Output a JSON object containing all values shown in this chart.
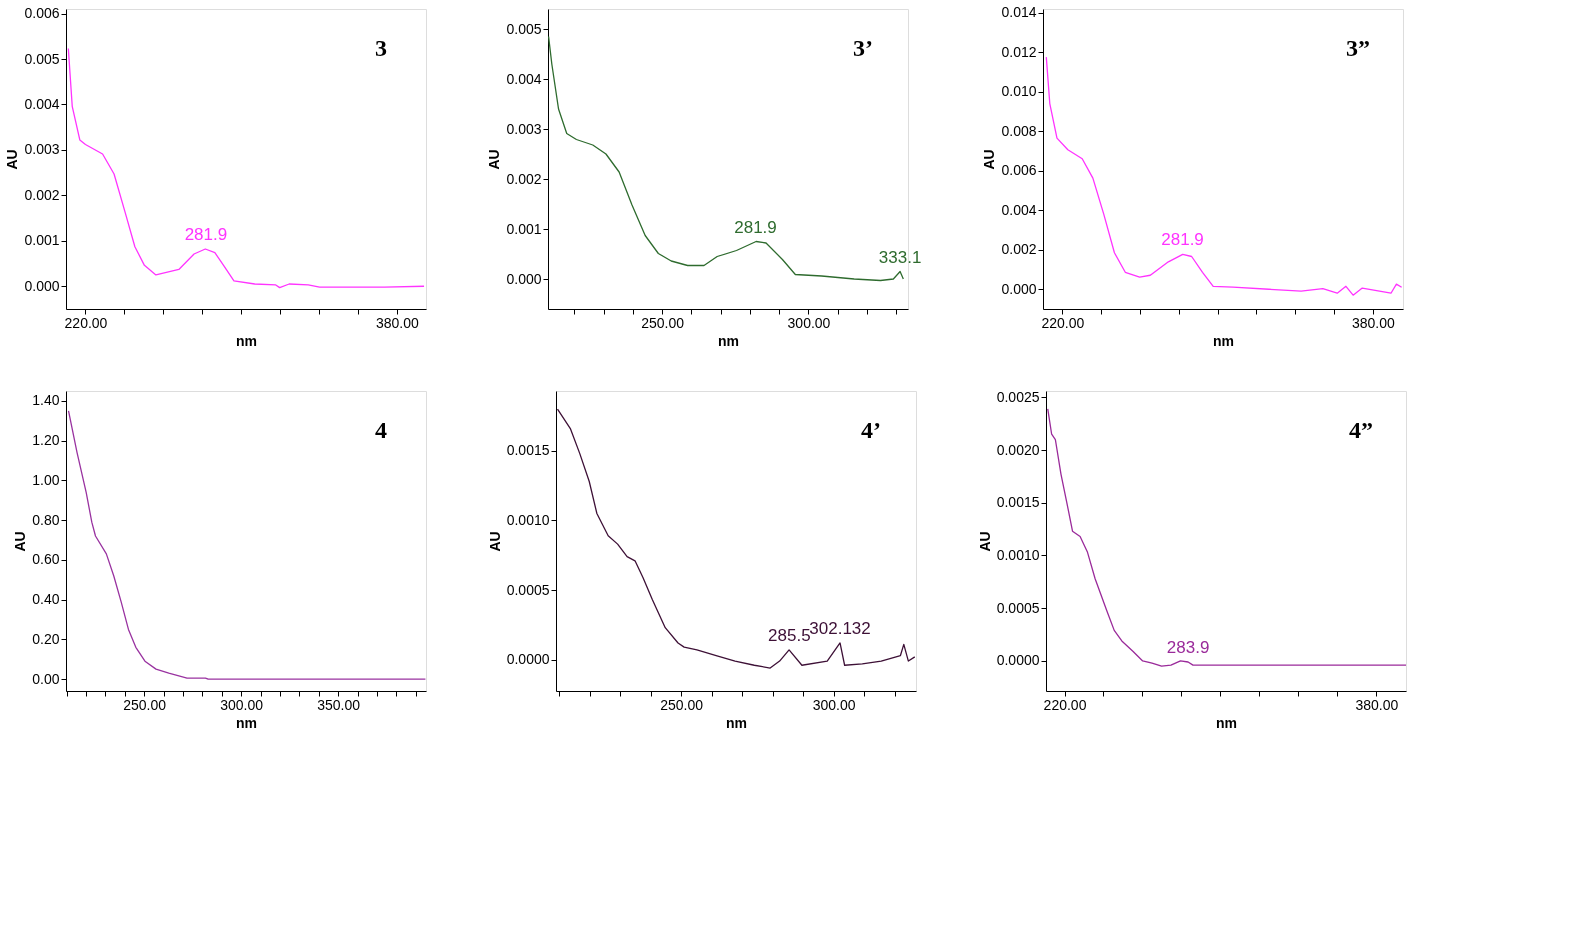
{
  "chart_data": [
    {
      "type": "line",
      "title": "3",
      "xlabel": "nm",
      "ylabel": "AU",
      "xlim": [
        210,
        395
      ],
      "ylim": [
        -0.0005,
        0.0061
      ],
      "xticks": [
        {
          "value": 220,
          "label": "220.00"
        },
        {
          "value": 240,
          "label": null
        },
        {
          "value": 260,
          "label": null
        },
        {
          "value": 280,
          "label": null
        },
        {
          "value": 300,
          "label": null
        },
        {
          "value": 320,
          "label": null
        },
        {
          "value": 340,
          "label": null
        },
        {
          "value": 360,
          "label": null
        },
        {
          "value": 380,
          "label": "380.00"
        }
      ],
      "yticks": [
        {
          "value": 0,
          "label": "0.000"
        },
        0.001,
        0.002,
        0.003,
        0.004,
        0.005,
        0.006
      ],
      "series": [
        {
          "color": "#ff33ff",
          "x": [
            211.2,
            213.2,
            217.1,
            220,
            228.8,
            234.7,
            240.5,
            245.4,
            250.3,
            256.2,
            268,
            275.8,
            281.6,
            286.5,
            291.4,
            296.3,
            307,
            317.8,
            319.8,
            324.7,
            334.5,
            340.3,
            360,
            373.6,
            394
          ],
          "values": [
            0.00523,
            0.00396,
            0.00322,
            0.00312,
            0.00291,
            0.00247,
            0.00161,
            0.00087,
            0.00046,
            0.00025,
            0.00037,
            0.00071,
            0.00082,
            0.00074,
            0.00043,
            0.00012,
            5e-05,
            3e-05,
            -3e-05,
            5e-05,
            3e-05,
            -2e-05,
            -2e-05,
            -2e-05,
            0.0
          ]
        }
      ],
      "annotations": [
        {
          "text": "281.9",
          "x": 281.9,
          "y": 0.00082
        }
      ]
    },
    {
      "type": "line",
      "title": "3’",
      "xlabel": "nm",
      "ylabel": "AU",
      "xlim": [
        211,
        334
      ],
      "ylim": [
        -0.0006,
        0.0054
      ],
      "xticks": [
        {
          "value": 220,
          "label": null
        },
        {
          "value": 230,
          "label": null
        },
        {
          "value": 240,
          "label": null
        },
        {
          "value": 250,
          "label": "250.00"
        },
        {
          "value": 260,
          "label": null
        },
        {
          "value": 270,
          "label": null
        },
        {
          "value": 280,
          "label": null
        },
        {
          "value": 290,
          "label": null
        },
        {
          "value": 300,
          "label": "300.00"
        },
        {
          "value": 310,
          "label": null
        },
        {
          "value": 320,
          "label": null
        },
        {
          "value": 330,
          "label": null
        }
      ],
      "yticks": [
        {
          "value": 0,
          "label": "0.000"
        },
        0.001,
        0.002,
        0.003,
        0.004,
        0.005
      ],
      "series": [
        {
          "color": "#2e6b2e",
          "x": [
            211.2,
            212.3,
            214.6,
            217.4,
            220.7,
            226.3,
            230.8,
            235.3,
            239.7,
            244.2,
            248.7,
            253.1,
            258.7,
            264.3,
            268.8,
            275.4,
            282.1,
            285.5,
            291.1,
            295.5,
            304.5,
            315.6,
            324.6,
            329,
            331.3,
            332.4
          ],
          "values": [
            0.00485,
            0.0043,
            0.0034,
            0.00291,
            0.00279,
            0.00268,
            0.0025,
            0.00214,
            0.00148,
            0.00087,
            0.00051,
            0.00036,
            0.00027,
            0.00027,
            0.00045,
            0.00057,
            0.00075,
            0.00072,
            0.00039,
            9e-05,
            6e-05,
            0.0,
            -3e-05,
            0.0,
            0.00015,
            0.0
          ]
        }
      ],
      "annotations": [
        {
          "text": "281.9",
          "x": 281.9,
          "y": 0.00075
        },
        {
          "text": "333.1",
          "x": 331.3,
          "y": 0.00015
        }
      ]
    },
    {
      "type": "line",
      "title": "3”",
      "xlabel": "nm",
      "ylabel": "AU",
      "xlim": [
        210,
        395.5
      ],
      "ylim": [
        -0.001,
        0.0142
      ],
      "xticks": [
        {
          "value": 220,
          "label": "220.00"
        },
        {
          "value": 240,
          "label": null
        },
        {
          "value": 260,
          "label": null
        },
        {
          "value": 280,
          "label": null
        },
        {
          "value": 300,
          "label": null
        },
        {
          "value": 320,
          "label": null
        },
        {
          "value": 340,
          "label": null
        },
        {
          "value": 360,
          "label": null
        },
        {
          "value": 380,
          "label": "380.00"
        }
      ],
      "yticks": [
        {
          "value": 0,
          "label": "0.000"
        },
        0.002,
        0.004,
        0.006,
        0.008,
        {
          "value": 0.01,
          "label": "0.010"
        },
        0.012,
        0.014
      ],
      "series": [
        {
          "color": "#ff33ff",
          "x": [
            211.7,
            213.5,
            217.2,
            222.8,
            230.2,
            235.7,
            241.3,
            246.8,
            252.4,
            259.8,
            265.3,
            274.6,
            282,
            286.6,
            292.2,
            297.7,
            307.9,
            326.4,
            343,
            354.2,
            361.6,
            366.1,
            369.8,
            374.5,
            389.3,
            392.1,
            394.8
          ],
          "values": [
            0.01176,
            0.00941,
            0.00766,
            0.00707,
            0.00661,
            0.00563,
            0.00381,
            0.00185,
            0.00086,
            0.00061,
            0.00071,
            0.00139,
            0.00177,
            0.00166,
            0.00086,
            0.00015,
            0.00011,
            0.0,
            -9e-05,
            3e-05,
            -0.0002,
            0.00015,
            -0.0003,
            6e-05,
            -0.0002,
            0.00026,
            0.0001
          ]
        }
      ],
      "annotations": [
        {
          "text": "281.9",
          "x": 281.9,
          "y": 0.00177
        }
      ]
    },
    {
      "type": "line",
      "title": "4",
      "xlabel": "nm",
      "ylabel": "AU",
      "xlim": [
        209.7,
        395.3
      ],
      "ylim": [
        -0.06,
        1.45
      ],
      "xticks": [
        {
          "value": 210,
          "label": null
        },
        {
          "value": 220,
          "label": null
        },
        {
          "value": 230,
          "label": null
        },
        {
          "value": 240,
          "label": null
        },
        {
          "value": 250,
          "label": "250.00"
        },
        {
          "value": 260,
          "label": null
        },
        {
          "value": 270,
          "label": null
        },
        {
          "value": 280,
          "label": null
        },
        {
          "value": 290,
          "label": null
        },
        {
          "value": 300,
          "label": "300.00"
        },
        {
          "value": 310,
          "label": null
        },
        {
          "value": 320,
          "label": null
        },
        {
          "value": 330,
          "label": null
        },
        {
          "value": 340,
          "label": null
        },
        {
          "value": 350,
          "label": "350.00"
        },
        {
          "value": 360,
          "label": null
        },
        {
          "value": 370,
          "label": null
        },
        {
          "value": 380,
          "label": null
        },
        {
          "value": 390,
          "label": null
        }
      ],
      "yticks": [
        {
          "value": 0,
          "label": "0.00"
        },
        {
          "value": 0.2,
          "label": "0.20"
        },
        {
          "value": 0.4,
          "label": "0.40"
        },
        {
          "value": 0.6,
          "label": "0.60"
        },
        {
          "value": 0.8,
          "label": "0.80"
        },
        {
          "value": 1.0,
          "label": "1.00"
        },
        {
          "value": 1.2,
          "label": "1.20"
        },
        {
          "value": 1.4,
          "label": "1.40"
        }
      ],
      "series": [
        {
          "color": "#9932a0",
          "x": [
            211,
            215.4,
            220.1,
            223,
            224.9,
            230.5,
            234.3,
            238.1,
            241.9,
            245.7,
            250.4,
            256.1,
            262.7,
            272.1,
            281.6,
            283,
            395
          ],
          "values": [
            1.35,
            1.14,
            0.94,
            0.79,
            0.72,
            0.63,
            0.52,
            0.39,
            0.25,
            0.16,
            0.09,
            0.05,
            0.03,
            0.005,
            0.005,
            0.0,
            0.0
          ]
        }
      ]
    },
    {
      "type": "line",
      "title": "4’",
      "xlabel": "nm",
      "ylabel": "AU",
      "xlim": [
        209,
        327
      ],
      "ylim": [
        -0.000225,
        0.00193
      ],
      "xticks": [
        {
          "value": 210,
          "label": null
        },
        {
          "value": 220,
          "label": null
        },
        {
          "value": 230,
          "label": null
        },
        {
          "value": 240,
          "label": null
        },
        {
          "value": 250,
          "label": "250.00"
        },
        {
          "value": 260,
          "label": null
        },
        {
          "value": 270,
          "label": null
        },
        {
          "value": 280,
          "label": null
        },
        {
          "value": 290,
          "label": null
        },
        {
          "value": 300,
          "label": "300.00"
        },
        {
          "value": 310,
          "label": null
        },
        {
          "value": 320,
          "label": null
        }
      ],
      "yticks": [
        {
          "value": 0,
          "label": "0.0000"
        },
        0.0005,
        {
          "value": 0.001,
          "label": "0.0010"
        },
        0.0015
      ],
      "series": [
        {
          "color": "#3d1036",
          "x": [
            209.5,
            213.7,
            216.8,
            219.9,
            222.4,
            226.1,
            229.2,
            232.3,
            234.9,
            237.5,
            240.6,
            244.8,
            249,
            251,
            255.2,
            261.5,
            267.7,
            274,
            279.2,
            282.3,
            285.4,
            289.6,
            297.9,
            302.1,
            303.6,
            309.4,
            315.6,
            321.9,
            323,
            324.5,
            326.6
          ],
          "values": [
            0.0018,
            0.00166,
            0.00148,
            0.00128,
            0.00105,
            0.00089,
            0.00083,
            0.00074,
            0.00071,
            0.00059,
            0.00043,
            0.00023,
            0.00012,
            9e-05,
            7e-05,
            3e-05,
            -1e-05,
            -4e-05,
            -6e-05,
            -1e-05,
            7e-05,
            -4e-05,
            -1e-05,
            0.00012,
            -4e-05,
            -3e-05,
            -1e-05,
            3e-05,
            0.00011,
            -1e-05,
            2e-05
          ]
        }
      ],
      "annotations": [
        {
          "text": "285.5",
          "x": 285.5,
          "y": 7e-05
        },
        {
          "text": "302.132",
          "x": 302.1,
          "y": 0.00012
        }
      ]
    },
    {
      "type": "line",
      "title": "4”",
      "xlabel": "nm",
      "ylabel": "AU",
      "xlim": [
        210.5,
        395.2
      ],
      "ylim": [
        -0.000285,
        0.00256
      ],
      "xticks": [
        {
          "value": 220,
          "label": "220.00"
        },
        {
          "value": 240,
          "label": null
        },
        {
          "value": 260,
          "label": null
        },
        {
          "value": 280,
          "label": null
        },
        {
          "value": 300,
          "label": null
        },
        {
          "value": 320,
          "label": null
        },
        {
          "value": 340,
          "label": null
        },
        {
          "value": 360,
          "label": null
        },
        {
          "value": 380,
          "label": "380.00"
        }
      ],
      "yticks": [
        {
          "value": 0,
          "label": "0.0000"
        },
        0.0005,
        {
          "value": 0.001,
          "label": "0.0010"
        },
        0.0015,
        {
          "value": 0.002,
          "label": "0.0020"
        },
        0.0025
      ],
      "series": [
        {
          "color": "#9a2a9a",
          "x": [
            211.4,
            213.4,
            215.3,
            218.2,
            221.2,
            224.1,
            228,
            231.8,
            235.7,
            241.6,
            245.5,
            249.4,
            255.2,
            260.1,
            264.9,
            269.8,
            274.6,
            279.5,
            283.4,
            285.9,
            395.2
          ],
          "values": [
            0.00239,
            0.00215,
            0.0021,
            0.00177,
            0.0015,
            0.00123,
            0.00118,
            0.00103,
            0.00078,
            0.00048,
            0.00029,
            0.00019,
            9e-05,
            0.0,
            -2e-05,
            -5e-05,
            -4e-05,
            0.0,
            -1e-05,
            -4e-05,
            -4e-05
          ]
        }
      ],
      "annotations": [
        {
          "text": "283.9",
          "x": 283.4,
          "y": -1e-05
        }
      ]
    }
  ]
}
